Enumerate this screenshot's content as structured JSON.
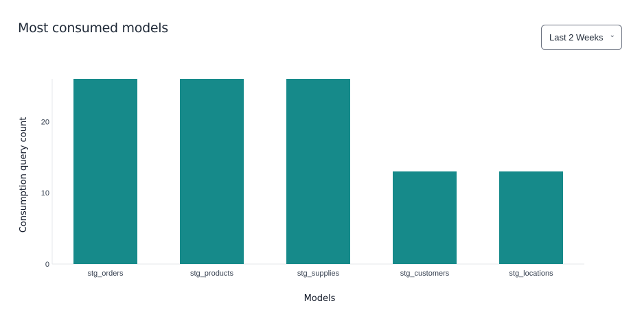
{
  "header": {
    "title": "Most consumed models"
  },
  "filter": {
    "selected": "Last 2 Weeks",
    "icon": "chevron-down-icon"
  },
  "chart_data": {
    "type": "bar",
    "title": "Most consumed models",
    "categories": [
      "stg_orders",
      "stg_products",
      "stg_supplies",
      "stg_customers",
      "stg_locations"
    ],
    "values": [
      26,
      26,
      26,
      13,
      13
    ],
    "xlabel": "Models",
    "ylabel": "Consumption query count",
    "ylim": [
      0,
      26
    ],
    "yticks": [
      0,
      10,
      20
    ],
    "grid": false,
    "bar_color": "#168a8a"
  }
}
